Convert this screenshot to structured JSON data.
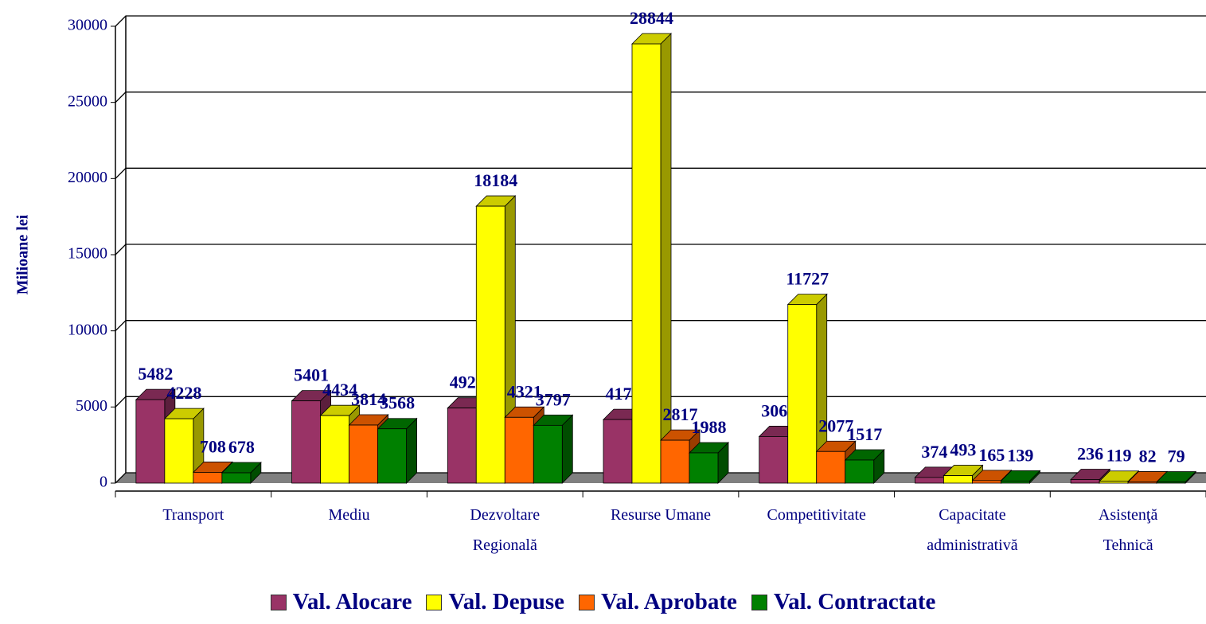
{
  "chart_data": {
    "type": "bar3d",
    "y_label": "Milioane lei",
    "categories": [
      "Transport",
      "Mediu",
      "Dezvoltare Regională",
      "Resurse Umane",
      "Competitivitate",
      "Capacitate administrativă",
      "Asistenţă Tehnică"
    ],
    "series": [
      {
        "name": "Val. Alocare",
        "color": "#993366",
        "values": [
          5482,
          5401,
          4928,
          4175,
          3062,
          374,
          236
        ]
      },
      {
        "name": "Val. Depuse",
        "color": "#ffff00",
        "values": [
          4228,
          4434,
          18184,
          28844,
          11727,
          493,
          119
        ]
      },
      {
        "name": "Val. Aprobate",
        "color": "#ff6600",
        "values": [
          708,
          3814,
          4321,
          2817,
          2077,
          165,
          82
        ]
      },
      {
        "name": "Val. Contractate",
        "color": "#008000",
        "values": [
          678,
          3568,
          3797,
          1988,
          1517,
          139,
          79
        ]
      }
    ],
    "ylim": [
      0,
      30000
    ],
    "yticks": [
      0,
      5000,
      10000,
      15000,
      20000,
      25000,
      30000
    ],
    "grid": true,
    "legend": "bottom"
  }
}
